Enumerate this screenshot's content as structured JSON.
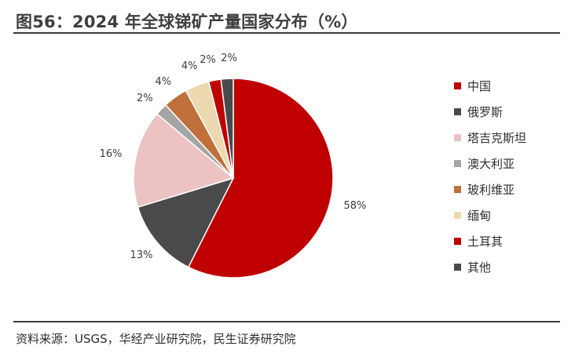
{
  "title": "图56：2024 年全球锑矿产量国家分布（%）",
  "source": "资料来源：USGS，华经产业研究院，民生证券研究院",
  "chart_data": {
    "type": "pie",
    "categories": [
      "中国",
      "俄罗斯",
      "塔吉克斯坦",
      "澳大利亚",
      "玻利维亚",
      "缅甸",
      "土耳其",
      "其他"
    ],
    "values": [
      58,
      13,
      16,
      2,
      4,
      4,
      2,
      2
    ],
    "labels": [
      "58%",
      "13%",
      "16%",
      "2%",
      "4%",
      "4%",
      "2%",
      "2%"
    ],
    "colors": [
      "#c00000",
      "#4a4a4c",
      "#ecc2c2",
      "#a5a5a5",
      "#c0703a",
      "#ecd9b0",
      "#c00000",
      "#4a4a4c"
    ],
    "start": "12 o'clock",
    "direction": "clockwise",
    "legend_position": "right"
  }
}
